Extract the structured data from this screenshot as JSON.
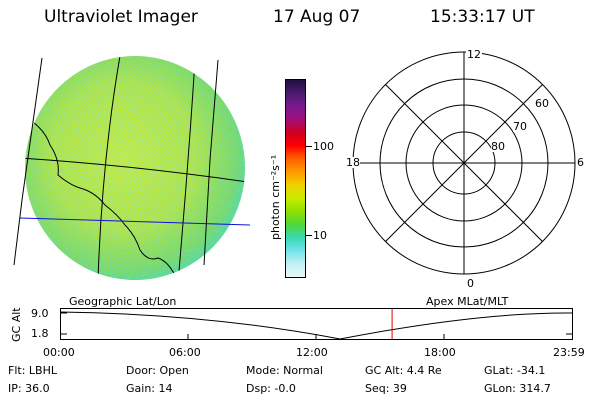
{
  "header": {
    "instrument": "Ultraviolet Imager",
    "date": "17 Aug 07",
    "time": "15:33:17 UT"
  },
  "colorbar": {
    "unit_label": "photon cm⁻²s⁻¹",
    "ticks": [
      "100",
      "10"
    ],
    "colors": [
      "#201040",
      "#4a1a70",
      "#7a1a90",
      "#a0107a",
      "#d00020",
      "#ff0000",
      "#ff6000",
      "#ff9a00",
      "#f0d000",
      "#c8ec00",
      "#90e000",
      "#50d838",
      "#38d8b0",
      "#70e4ec",
      "#c4f0f4",
      "#e4f8f8"
    ]
  },
  "left_panel": {
    "label": "Geographic Lat/Lon"
  },
  "right_panel": {
    "label": "Apex MLat/MLT",
    "mlt_labels": {
      "top": "12",
      "left": "18",
      "right": "6",
      "bottom": "0"
    },
    "mlat_labels": [
      "60",
      "70",
      "80"
    ]
  },
  "timeline": {
    "ylabel": "GC Alt",
    "yticks": [
      "9.0",
      "1.8"
    ],
    "xticks": [
      "00:00",
      "06:00",
      "12:00",
      "18:00",
      "23:59"
    ],
    "marker_color": "#e00000",
    "marker_time_hours": 15.55
  },
  "status": {
    "filter": "Flt: LBHL",
    "ip": "IP: 36.0",
    "door": "Door: Open",
    "gain": "Gain: 14",
    "mode": "Mode: Normal",
    "dsp": "Dsp:    -0.0",
    "gc_alt": "GC Alt: 4.4 Re",
    "seq": "Seq: 39",
    "glat": "GLat:  -34.1",
    "glon": "GLon: 314.7"
  }
}
